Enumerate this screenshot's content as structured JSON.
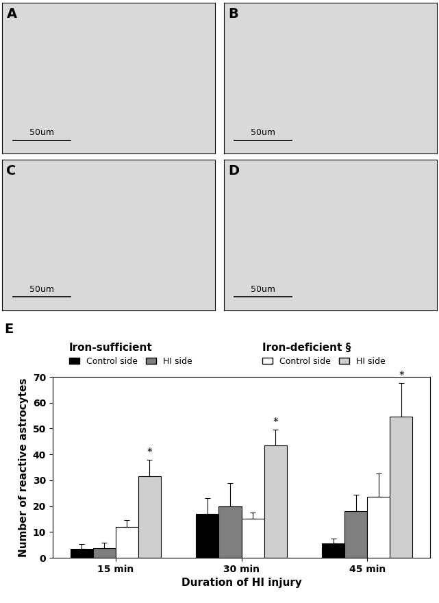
{
  "panels": [
    {
      "label": "A",
      "scale_bar": "50um"
    },
    {
      "label": "B",
      "scale_bar": "50um"
    },
    {
      "label": "C",
      "scale_bar": "50um"
    },
    {
      "label": "D",
      "scale_bar": "50um"
    }
  ],
  "chart_data": {
    "type": "bar",
    "panel_label": "E",
    "x_label": "Duration of HI injury",
    "y_label": "Number of reactive astrocytes",
    "categories": [
      "15 min",
      "30 min",
      "45 min"
    ],
    "ylim": [
      0,
      70
    ],
    "yticks": [
      0,
      10,
      20,
      30,
      40,
      50,
      60,
      70
    ],
    "series": [
      {
        "name": "Control side",
        "group": "Iron-sufficient",
        "color": "#000000",
        "values": [
          3.5,
          17,
          5.5
        ],
        "error": [
          1.8,
          6,
          2
        ]
      },
      {
        "name": "HI side",
        "group": "Iron-sufficient",
        "color": "#7f7f7f",
        "values": [
          3.8,
          20,
          18
        ],
        "error": [
          2,
          9,
          6.5
        ]
      },
      {
        "name": "Control side",
        "group": "Iron-deficient §",
        "color": "#ffffff",
        "values": [
          12,
          15,
          23.5
        ],
        "error": [
          2.5,
          2.5,
          9
        ]
      },
      {
        "name": "HI side",
        "group": "Iron-deficient §",
        "color": "#cfcfcf",
        "values": [
          31.5,
          43.5,
          54.5
        ],
        "error": [
          6.5,
          6,
          13
        ],
        "annotations": [
          "*",
          "*",
          "*"
        ]
      }
    ]
  }
}
